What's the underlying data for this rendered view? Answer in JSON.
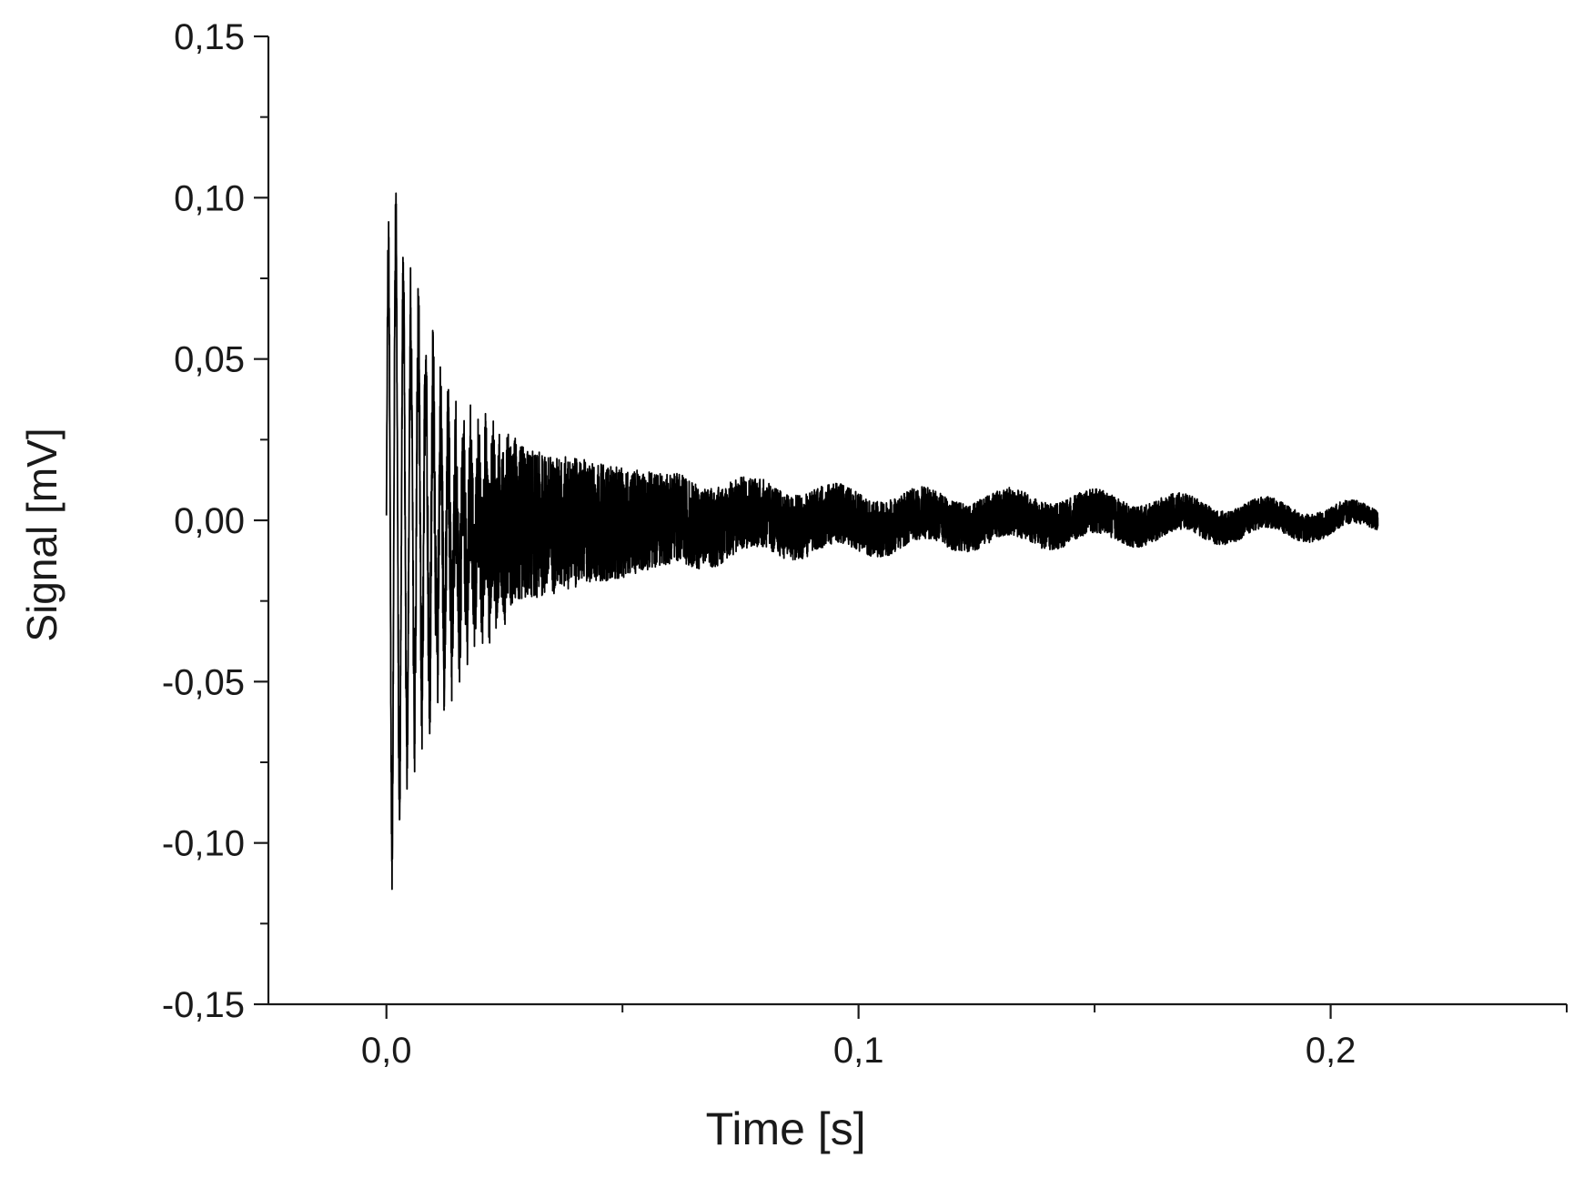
{
  "chart_data": {
    "type": "line",
    "title": "",
    "xlabel": "Time [s]",
    "ylabel": "Signal [mV]",
    "xlim": [
      -0.025,
      0.25
    ],
    "ylim": [
      -0.15,
      0.15
    ],
    "x_ticks": [
      {
        "value": 0.0,
        "label": "0,0"
      },
      {
        "value": 0.1,
        "label": "0,1"
      },
      {
        "value": 0.2,
        "label": "0,2"
      }
    ],
    "x_minor_ticks": [
      0.05,
      0.15,
      0.25
    ],
    "y_ticks": [
      {
        "value": 0.15,
        "label": "0,15"
      },
      {
        "value": 0.1,
        "label": "0,10"
      },
      {
        "value": 0.05,
        "label": "0,05"
      },
      {
        "value": 0.0,
        "label": "0,00"
      },
      {
        "value": -0.05,
        "label": "-0,05"
      },
      {
        "value": -0.1,
        "label": "-0,10"
      },
      {
        "value": -0.15,
        "label": "-0,15"
      }
    ],
    "y_minor_ticks": [
      0.125,
      0.075,
      0.025,
      -0.025,
      -0.075,
      -0.125
    ],
    "grid": false,
    "legend": "none",
    "series": [
      {
        "color": "#000000",
        "x_range": [
          0.0,
          0.21
        ],
        "envelope_points": [
          {
            "x": 0.0,
            "upper": 0.078,
            "lower": -0.075
          },
          {
            "x": 0.001,
            "upper": 0.128,
            "lower": -0.12
          },
          {
            "x": 0.003,
            "upper": 0.098,
            "lower": -0.103
          },
          {
            "x": 0.005,
            "upper": 0.084,
            "lower": -0.09
          },
          {
            "x": 0.009,
            "upper": 0.081,
            "lower": -0.082
          },
          {
            "x": 0.012,
            "upper": 0.055,
            "lower": -0.067
          },
          {
            "x": 0.015,
            "upper": 0.045,
            "lower": -0.062
          },
          {
            "x": 0.02,
            "upper": 0.04,
            "lower": -0.048
          },
          {
            "x": 0.025,
            "upper": 0.036,
            "lower": -0.04
          },
          {
            "x": 0.03,
            "upper": 0.027,
            "lower": -0.028
          },
          {
            "x": 0.04,
            "upper": 0.022,
            "lower": -0.025
          },
          {
            "x": 0.05,
            "upper": 0.02,
            "lower": -0.02
          },
          {
            "x": 0.06,
            "upper": 0.016,
            "lower": -0.017
          },
          {
            "x": 0.08,
            "upper": 0.013,
            "lower": -0.012
          },
          {
            "x": 0.1,
            "upper": 0.01,
            "lower": -0.011
          },
          {
            "x": 0.12,
            "upper": 0.009,
            "lower": -0.009
          },
          {
            "x": 0.14,
            "upper": 0.009,
            "lower": -0.008
          },
          {
            "x": 0.16,
            "upper": 0.008,
            "lower": -0.007
          },
          {
            "x": 0.18,
            "upper": 0.006,
            "lower": -0.006
          },
          {
            "x": 0.2,
            "upper": 0.005,
            "lower": -0.005
          },
          {
            "x": 0.21,
            "upper": 0.004,
            "lower": -0.003
          }
        ],
        "dominant_frequency_hz": 630,
        "description_of_shape": "damped oscillation decaying toward zero"
      }
    ]
  }
}
